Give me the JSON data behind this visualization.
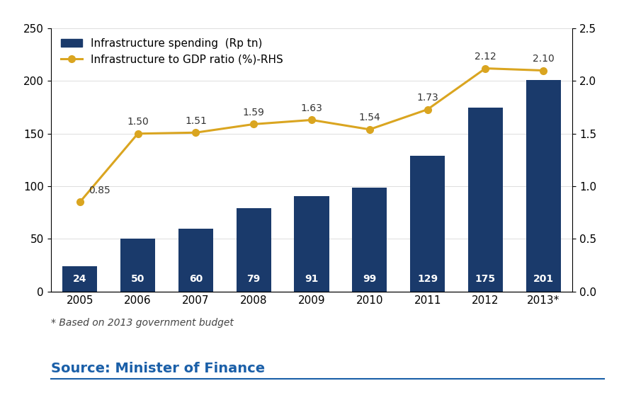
{
  "years": [
    "2005",
    "2006",
    "2007",
    "2008",
    "2009",
    "2010",
    "2011",
    "2012",
    "2013*"
  ],
  "bar_values": [
    24,
    50,
    60,
    79,
    91,
    99,
    129,
    175,
    201
  ],
  "line_values": [
    0.85,
    1.5,
    1.51,
    1.59,
    1.63,
    1.54,
    1.73,
    2.12,
    2.1
  ],
  "bar_color": "#1a3a6b",
  "line_color": "#daa520",
  "marker_color": "#daa520",
  "bar_label_color": "white",
  "ylim_left": [
    0,
    250
  ],
  "ylim_right": [
    0.0,
    2.5
  ],
  "yticks_left": [
    0,
    50,
    100,
    150,
    200,
    250
  ],
  "yticks_right": [
    0.0,
    0.5,
    1.0,
    1.5,
    2.0,
    2.5
  ],
  "legend_bar_label": "Infrastructure spending  (Rp tn)",
  "legend_line_label": "Infrastructure to GDP ratio (%)-RHS",
  "footnote": "* Based on 2013 government budget",
  "source_text": "Source: Minister of Finance",
  "source_color": "#1a5fa8",
  "background_color": "#ffffff",
  "bar_label_fontsize": 10,
  "line_label_fontsize": 10,
  "tick_fontsize": 11,
  "legend_fontsize": 11,
  "footnote_fontsize": 10,
  "source_fontsize": 14
}
